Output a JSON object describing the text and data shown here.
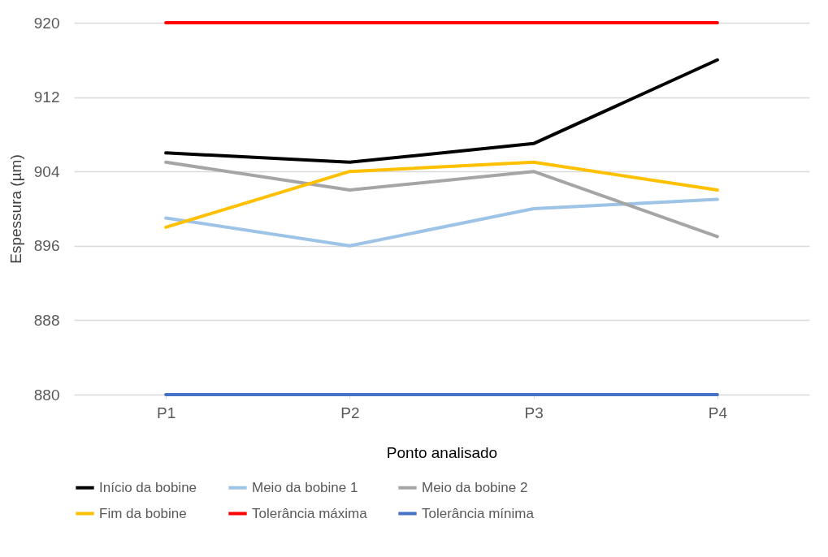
{
  "chart_data": {
    "type": "line",
    "xlabel": "Ponto analisado",
    "ylabel": "Espessura (µm)",
    "categories": [
      "P1",
      "P2",
      "P3",
      "P4"
    ],
    "series": [
      {
        "name": "Início da bobine",
        "color": "#000000",
        "values": [
          906,
          905,
          907,
          916
        ]
      },
      {
        "name": "Meio da bobine 1",
        "color": "#9dc3e6",
        "values": [
          899,
          896,
          900,
          901
        ]
      },
      {
        "name": "Meio da bobine 2",
        "color": "#a5a5a5",
        "values": [
          905,
          902,
          904,
          897
        ]
      },
      {
        "name": "Fim da bobine",
        "color": "#ffc000",
        "values": [
          898,
          904,
          905,
          902
        ]
      },
      {
        "name": "Tolerância máxima",
        "color": "#ff0000",
        "values": [
          920,
          920,
          920,
          920
        ]
      },
      {
        "name": "Tolerância mínima",
        "color": "#4472c4",
        "values": [
          880,
          880,
          880,
          880
        ]
      }
    ],
    "ylim": [
      880,
      920
    ],
    "yticks": [
      880,
      888,
      896,
      904,
      912,
      920
    ],
    "grid": "y",
    "legend": "bottom",
    "marker": "none",
    "line_style": "solid"
  }
}
